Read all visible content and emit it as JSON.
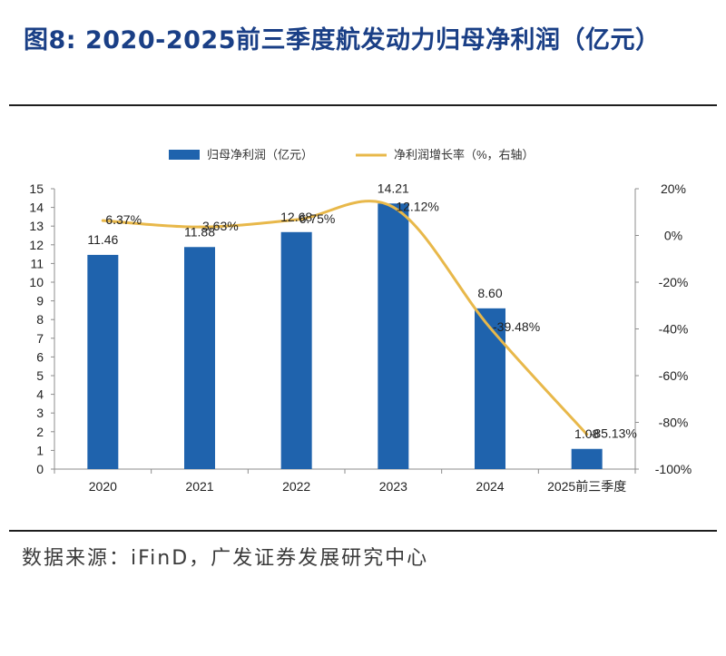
{
  "title": "图8: 2020-2025前三季度航发动力归母净利润（亿元）",
  "source": "数据来源：iFinD，广发证券发展研究中心",
  "chart_data": {
    "type": "bar",
    "categories": [
      "2020",
      "2021",
      "2022",
      "2023",
      "2024",
      "2025前三季度"
    ],
    "series": [
      {
        "name": "归母净利润（亿元）",
        "kind": "bar",
        "axis": "left",
        "color": "#1f63ad",
        "values": [
          11.46,
          11.88,
          12.68,
          14.21,
          8.6,
          1.08
        ],
        "labels": [
          "11.46",
          "11.88",
          "12.68",
          "14.21",
          "8.60",
          "1.08"
        ]
      },
      {
        "name": "净利润增长率（%，右轴）",
        "kind": "line",
        "axis": "right",
        "color": "#e8b84a",
        "values": [
          6.37,
          3.63,
          6.75,
          12.12,
          -39.48,
          -85.13
        ],
        "labels": [
          "6.37%",
          "3.63%",
          "6.75%",
          "12.12%",
          "-39.48%",
          "-85.13%"
        ]
      }
    ],
    "y_left": {
      "min": 0,
      "max": 15,
      "ticks": [
        "0",
        "1",
        "2",
        "3",
        "4",
        "5",
        "6",
        "7",
        "8",
        "9",
        "10",
        "11",
        "12",
        "13",
        "14",
        "15"
      ]
    },
    "y_right": {
      "min": -100,
      "max": 20,
      "ticks": [
        "-100%",
        "-80%",
        "-60%",
        "-40%",
        "-20%",
        "0%",
        "20%"
      ]
    },
    "legend_position": "top",
    "grid": false
  }
}
